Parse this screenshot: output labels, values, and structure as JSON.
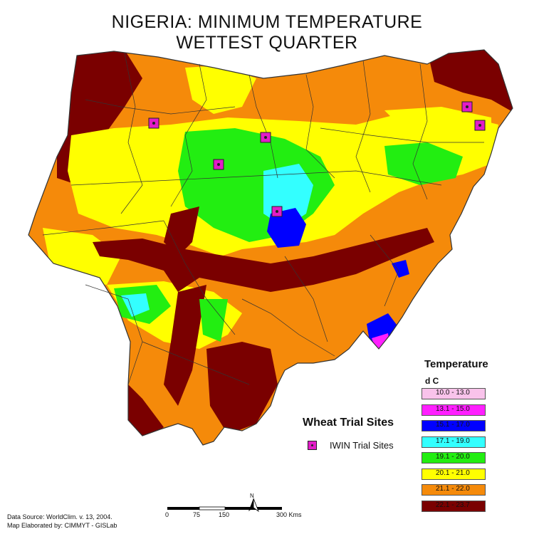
{
  "title_line1": "NIGERIA:  MINIMUM TEMPERATURE",
  "title_line2": "WETTEST QUARTER",
  "legend": {
    "title": "Temperature",
    "unit": "d C",
    "classes": [
      {
        "label": "10.0 - 13.0",
        "color": "#f9c3eb"
      },
      {
        "label": "13.1 - 15.0",
        "color": "#ff1fff"
      },
      {
        "label": "15.1 - 17.0",
        "color": "#0000ff"
      },
      {
        "label": "17.1 - 19.0",
        "color": "#33ffff"
      },
      {
        "label": "19.1 - 20.0",
        "color": "#22ee11"
      },
      {
        "label": "20.1 - 21.0",
        "color": "#ffff00"
      },
      {
        "label": "21.1 - 22.0",
        "color": "#f58a0a"
      },
      {
        "label": "22.1 - 23.7",
        "color": "#7a0000"
      }
    ]
  },
  "sites": {
    "title": "Wheat Trial Sites",
    "label": "IWIN Trial Sites",
    "color": "#e21cc8",
    "count": 6
  },
  "scale": {
    "labels": [
      "0",
      "75",
      "150",
      "300 Kms"
    ]
  },
  "north": "N",
  "footer": {
    "line1": "Data Source: WorldClim. v. 13, 2004.",
    "line2": "Map Elaborated by: CIMMYT - GISLab"
  }
}
